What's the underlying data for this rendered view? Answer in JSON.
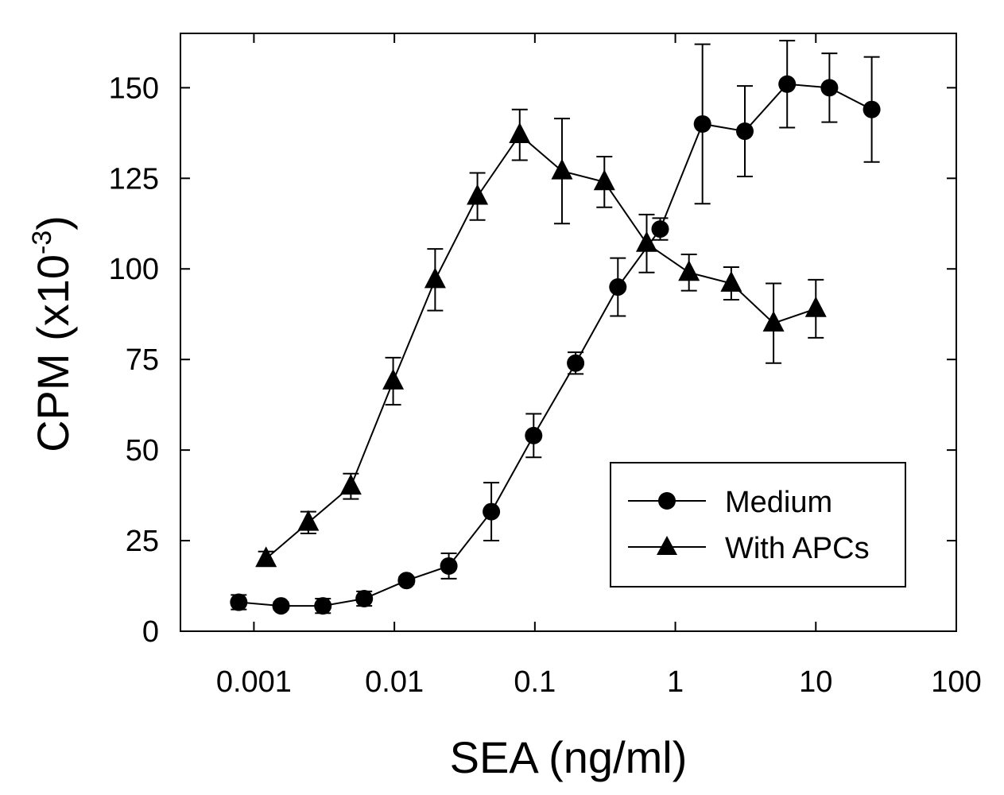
{
  "chart_data": {
    "type": "line",
    "title": "",
    "xlabel": "SEA (ng/ml)",
    "ylabel": {
      "main": "CPM (x10",
      "exponent": "-3",
      "close": ")"
    },
    "x_scale": "log",
    "xlim": [
      0.0003,
      100
    ],
    "ylim": [
      0,
      165
    ],
    "x_ticks": [
      {
        "value": 0.001,
        "label": "0.001"
      },
      {
        "value": 0.01,
        "label": "0.01"
      },
      {
        "value": 0.1,
        "label": "0.1"
      },
      {
        "value": 1,
        "label": "1"
      },
      {
        "value": 10,
        "label": "10"
      },
      {
        "value": 100,
        "label": "100"
      }
    ],
    "y_ticks": [
      {
        "value": 0,
        "label": "0"
      },
      {
        "value": 25,
        "label": "25"
      },
      {
        "value": 50,
        "label": "50"
      },
      {
        "value": 75,
        "label": "75"
      },
      {
        "value": 100,
        "label": "100"
      },
      {
        "value": 125,
        "label": "125"
      },
      {
        "value": 150,
        "label": "150"
      }
    ],
    "grid": false,
    "legend_position": "bottom-right",
    "series": [
      {
        "name": "Medium",
        "marker": "circle",
        "color": "#000000",
        "points": [
          {
            "x": 0.00078,
            "y": 8,
            "err": 2
          },
          {
            "x": 0.00156,
            "y": 7,
            "err": 1
          },
          {
            "x": 0.0031,
            "y": 7,
            "err": 2
          },
          {
            "x": 0.0061,
            "y": 9,
            "err": 2
          },
          {
            "x": 0.0122,
            "y": 14,
            "err": 1
          },
          {
            "x": 0.0244,
            "y": 18,
            "err": 3.5
          },
          {
            "x": 0.049,
            "y": 33,
            "err": 8
          },
          {
            "x": 0.098,
            "y": 54,
            "err": 6
          },
          {
            "x": 0.195,
            "y": 74,
            "err": 3
          },
          {
            "x": 0.39,
            "y": 95,
            "err": 8
          },
          {
            "x": 0.78,
            "y": 111,
            "err": 3
          },
          {
            "x": 1.56,
            "y": 140,
            "err": 22
          },
          {
            "x": 3.125,
            "y": 138,
            "err": 12.5
          },
          {
            "x": 6.25,
            "y": 151,
            "err": 12
          },
          {
            "x": 12.5,
            "y": 150,
            "err": 9.5
          },
          {
            "x": 25,
            "y": 144,
            "err": 14.5
          }
        ]
      },
      {
        "name": "With APCs",
        "marker": "triangle",
        "color": "#000000",
        "points": [
          {
            "x": 0.00122,
            "y": 20,
            "err": 2
          },
          {
            "x": 0.00244,
            "y": 30,
            "err": 3
          },
          {
            "x": 0.0049,
            "y": 40,
            "err": 3.5
          },
          {
            "x": 0.0098,
            "y": 69,
            "err": 6.5
          },
          {
            "x": 0.0195,
            "y": 97,
            "err": 8.5
          },
          {
            "x": 0.039,
            "y": 120,
            "err": 6.5
          },
          {
            "x": 0.078,
            "y": 137,
            "err": 7
          },
          {
            "x": 0.156,
            "y": 127,
            "err": 14.5
          },
          {
            "x": 0.3125,
            "y": 124,
            "err": 7
          },
          {
            "x": 0.625,
            "y": 107,
            "err": 8
          },
          {
            "x": 1.25,
            "y": 99,
            "err": 5
          },
          {
            "x": 2.5,
            "y": 96,
            "err": 4.5
          },
          {
            "x": 5,
            "y": 85,
            "err": 11
          },
          {
            "x": 10,
            "y": 89,
            "err": 8
          }
        ]
      }
    ]
  }
}
